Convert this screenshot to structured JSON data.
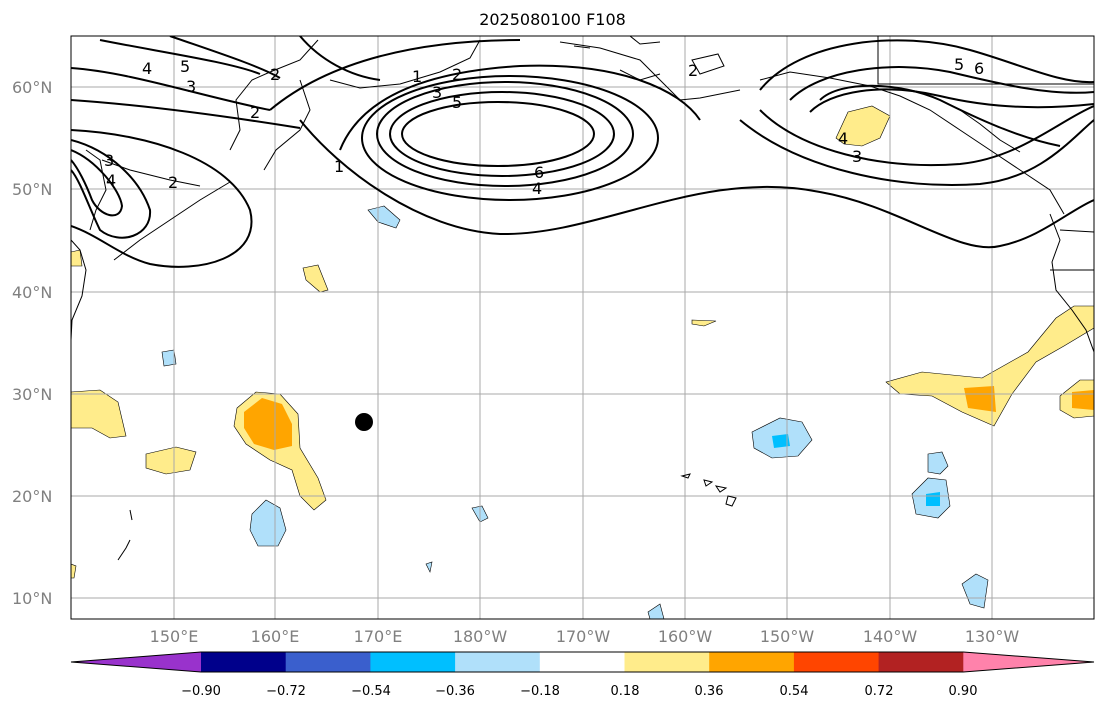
{
  "title": "2025080100 F108",
  "lat_labels": [
    "60°N",
    "50°N",
    "40°N",
    "30°N",
    "20°N",
    "10°N"
  ],
  "lon_labels": [
    "150°E",
    "160°E",
    "170°E",
    "180°W",
    "170°W",
    "160°W",
    "150°W",
    "140°W",
    "130°W"
  ],
  "colorbar": {
    "tick_labels": [
      "−0.90",
      "−0.72",
      "−0.54",
      "−0.36",
      "−0.18",
      "0.18",
      "0.36",
      "0.54",
      "0.72",
      "0.90"
    ],
    "colors": [
      "#9932cc",
      "#00008b",
      "#3a5fcd",
      "#00bfff",
      "#b0e0fa",
      "#ffffff",
      "#ffec8b",
      "#ffa500",
      "#ff4500",
      "#b22222",
      "#ff82ab"
    ]
  },
  "contour_labels": [
    "5",
    "4",
    "3",
    "2",
    "1",
    "2",
    "3",
    "5",
    "6",
    "4",
    "1",
    "2",
    "3",
    "4",
    "2",
    "5",
    "6",
    "4",
    "3",
    "2"
  ],
  "marker": "storm-position-dot"
}
